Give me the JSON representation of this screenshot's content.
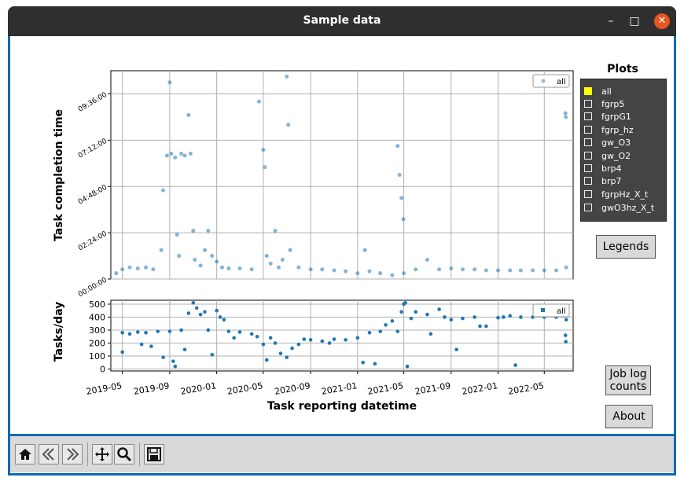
{
  "window": {
    "title": "Sample data",
    "controls": {
      "minimize": "–",
      "maximize": "□",
      "close": "✕"
    }
  },
  "plots_panel": {
    "title": "Plots",
    "items": [
      {
        "label": "all",
        "checked": true
      },
      {
        "label": "fgrp5",
        "checked": false
      },
      {
        "label": "fgrpG1",
        "checked": false
      },
      {
        "label": "fgrp_hz",
        "checked": false
      },
      {
        "label": "gw_O3",
        "checked": false
      },
      {
        "label": "gw_O2",
        "checked": false
      },
      {
        "label": "brp4",
        "checked": false
      },
      {
        "label": "brp7",
        "checked": false
      },
      {
        "label": "fgrpHz_X_t",
        "checked": false
      },
      {
        "label": "gwO3hz_X_t",
        "checked": false
      }
    ]
  },
  "buttons": {
    "legends": "Legends",
    "job_log_counts_line1": "Job log",
    "job_log_counts_line2": "counts",
    "about": "About"
  },
  "toolbar": {
    "icons": [
      "home-icon",
      "back-icon",
      "forward-icon",
      "pan-icon",
      "zoom-icon",
      "save-icon"
    ]
  },
  "colors": {
    "series": "#1f77b4",
    "accent": "#0a6ab3",
    "panel": "#444444",
    "titlebar": "#2f2f2f",
    "close": "#e95420"
  },
  "chart_data": [
    {
      "type": "scatter",
      "title": "",
      "xlabel": "",
      "ylabel": "Task completion time",
      "x_range": [
        "2019-04-01",
        "2022-07-15"
      ],
      "ylim_hours": [
        0,
        10.8
      ],
      "ytick_labels": [
        "00:00:00",
        "02:24:00",
        "04:48:00",
        "07:12:00",
        "09:36:00"
      ],
      "ytick_values_hours": [
        0,
        2.4,
        4.8,
        7.2,
        9.6
      ],
      "grid": true,
      "legend": {
        "placement": "top-right",
        "entries": [
          "all"
        ]
      },
      "series": [
        {
          "name": "all",
          "points": [
            [
              "2019-04-15",
              0.3
            ],
            [
              "2019-05-01",
              0.5
            ],
            [
              "2019-05-20",
              0.6
            ],
            [
              "2019-06-10",
              0.55
            ],
            [
              "2019-07-01",
              0.6
            ],
            [
              "2019-07-20",
              0.5
            ],
            [
              "2019-08-10",
              1.5
            ],
            [
              "2019-08-15",
              4.6
            ],
            [
              "2019-08-25",
              6.4
            ],
            [
              "2019-09-01",
              10.2
            ],
            [
              "2019-09-05",
              6.5
            ],
            [
              "2019-09-15",
              6.3
            ],
            [
              "2019-09-20",
              2.3
            ],
            [
              "2019-09-25",
              1.2
            ],
            [
              "2019-10-01",
              6.5
            ],
            [
              "2019-10-10",
              6.4
            ],
            [
              "2019-10-20",
              8.5
            ],
            [
              "2019-10-25",
              6.5
            ],
            [
              "2019-11-01",
              2.5
            ],
            [
              "2019-11-05",
              1.0
            ],
            [
              "2019-11-20",
              0.7
            ],
            [
              "2019-12-01",
              1.5
            ],
            [
              "2019-12-10",
              2.5
            ],
            [
              "2019-12-20",
              1.2
            ],
            [
              "2020-01-01",
              0.9
            ],
            [
              "2020-01-15",
              0.6
            ],
            [
              "2020-02-01",
              0.55
            ],
            [
              "2020-03-01",
              0.55
            ],
            [
              "2020-04-01",
              0.5
            ],
            [
              "2020-04-20",
              9.2
            ],
            [
              "2020-05-01",
              6.7
            ],
            [
              "2020-05-05",
              5.8
            ],
            [
              "2020-05-10",
              1.2
            ],
            [
              "2020-05-20",
              0.8
            ],
            [
              "2020-06-01",
              2.5
            ],
            [
              "2020-06-10",
              0.6
            ],
            [
              "2020-06-20",
              1.0
            ],
            [
              "2020-07-01",
              10.5
            ],
            [
              "2020-07-05",
              8.0
            ],
            [
              "2020-07-10",
              1.5
            ],
            [
              "2020-08-01",
              0.6
            ],
            [
              "2020-09-01",
              0.5
            ],
            [
              "2020-10-01",
              0.5
            ],
            [
              "2020-11-01",
              0.45
            ],
            [
              "2020-12-01",
              0.4
            ],
            [
              "2021-01-01",
              0.3
            ],
            [
              "2021-01-20",
              1.5
            ],
            [
              "2021-02-01",
              0.4
            ],
            [
              "2021-03-01",
              0.3
            ],
            [
              "2021-04-01",
              0.2
            ],
            [
              "2021-04-15",
              6.9
            ],
            [
              "2021-04-20",
              5.4
            ],
            [
              "2021-04-25",
              4.2
            ],
            [
              "2021-04-30",
              3.1
            ],
            [
              "2021-05-01",
              0.3
            ],
            [
              "2021-06-01",
              0.5
            ],
            [
              "2021-07-01",
              1.0
            ],
            [
              "2021-08-01",
              0.5
            ],
            [
              "2021-09-01",
              0.55
            ],
            [
              "2021-10-01",
              0.5
            ],
            [
              "2021-11-01",
              0.5
            ],
            [
              "2021-12-01",
              0.45
            ],
            [
              "2022-01-01",
              0.45
            ],
            [
              "2022-02-01",
              0.45
            ],
            [
              "2022-03-01",
              0.45
            ],
            [
              "2022-04-01",
              0.45
            ],
            [
              "2022-05-01",
              0.45
            ],
            [
              "2022-06-01",
              0.45
            ],
            [
              "2022-06-25",
              8.6
            ],
            [
              "2022-06-26",
              8.4
            ],
            [
              "2022-06-27",
              0.6
            ]
          ]
        }
      ]
    },
    {
      "type": "scatter",
      "title": "",
      "xlabel": "Task reporting datetime",
      "ylabel": "Tasks/day",
      "x_range": [
        "2019-04-01",
        "2022-07-15"
      ],
      "ylim": [
        -15,
        530
      ],
      "yticks": [
        0,
        100,
        200,
        300,
        400,
        500
      ],
      "xtick_labels": [
        "2019-05",
        "2019-09",
        "2020-01",
        "2020-05",
        "2020-09",
        "2021-01",
        "2021-05",
        "2021-09",
        "2022-01",
        "2022-05"
      ],
      "xtick_values": [
        "2019-05-01",
        "2019-09-01",
        "2020-01-01",
        "2020-05-01",
        "2020-09-01",
        "2021-01-01",
        "2021-05-01",
        "2021-09-01",
        "2022-01-01",
        "2022-05-01"
      ],
      "grid": true,
      "legend": {
        "placement": "top-right",
        "entries": [
          "all"
        ]
      },
      "series": [
        {
          "name": "all",
          "points": [
            [
              "2019-05-01",
              280
            ],
            [
              "2019-05-01",
              130
            ],
            [
              "2019-05-20",
              270
            ],
            [
              "2019-06-10",
              285
            ],
            [
              "2019-06-20",
              190
            ],
            [
              "2019-07-01",
              280
            ],
            [
              "2019-07-15",
              175
            ],
            [
              "2019-08-01",
              290
            ],
            [
              "2019-08-15",
              90
            ],
            [
              "2019-09-01",
              290
            ],
            [
              "2019-09-10",
              60
            ],
            [
              "2019-09-15",
              20
            ],
            [
              "2019-10-01",
              300
            ],
            [
              "2019-10-10",
              150
            ],
            [
              "2019-10-20",
              430
            ],
            [
              "2019-11-01",
              510
            ],
            [
              "2019-11-10",
              470
            ],
            [
              "2019-11-20",
              420
            ],
            [
              "2019-12-01",
              440
            ],
            [
              "2019-12-10",
              300
            ],
            [
              "2019-12-20",
              110
            ],
            [
              "2020-01-01",
              450
            ],
            [
              "2020-01-10",
              400
            ],
            [
              "2020-01-20",
              380
            ],
            [
              "2020-02-01",
              290
            ],
            [
              "2020-02-15",
              240
            ],
            [
              "2020-03-01",
              285
            ],
            [
              "2020-04-01",
              270
            ],
            [
              "2020-04-15",
              250
            ],
            [
              "2020-05-01",
              190
            ],
            [
              "2020-05-10",
              70
            ],
            [
              "2020-05-20",
              240
            ],
            [
              "2020-06-01",
              200
            ],
            [
              "2020-06-15",
              120
            ],
            [
              "2020-07-01",
              90
            ],
            [
              "2020-07-15",
              160
            ],
            [
              "2020-08-01",
              190
            ],
            [
              "2020-08-15",
              230
            ],
            [
              "2020-09-01",
              225
            ],
            [
              "2020-10-01",
              215
            ],
            [
              "2020-10-20",
              200
            ],
            [
              "2020-11-01",
              230
            ],
            [
              "2020-12-01",
              225
            ],
            [
              "2021-01-01",
              240
            ],
            [
              "2021-01-15",
              50
            ],
            [
              "2021-02-01",
              280
            ],
            [
              "2021-02-15",
              40
            ],
            [
              "2021-03-01",
              290
            ],
            [
              "2021-03-15",
              340
            ],
            [
              "2021-04-01",
              370
            ],
            [
              "2021-04-15",
              290
            ],
            [
              "2021-04-25",
              440
            ],
            [
              "2021-05-01",
              500
            ],
            [
              "2021-05-05",
              510
            ],
            [
              "2021-05-10",
              20
            ],
            [
              "2021-05-20",
              390
            ],
            [
              "2021-06-01",
              440
            ],
            [
              "2021-07-01",
              420
            ],
            [
              "2021-07-10",
              270
            ],
            [
              "2021-08-01",
              460
            ],
            [
              "2021-08-15",
              400
            ],
            [
              "2021-09-01",
              380
            ],
            [
              "2021-09-15",
              150
            ],
            [
              "2021-10-01",
              390
            ],
            [
              "2021-11-01",
              400
            ],
            [
              "2021-11-15",
              330
            ],
            [
              "2021-12-01",
              330
            ],
            [
              "2022-01-01",
              395
            ],
            [
              "2022-01-15",
              400
            ],
            [
              "2022-02-01",
              410
            ],
            [
              "2022-02-15",
              30
            ],
            [
              "2022-03-01",
              400
            ],
            [
              "2022-04-01",
              400
            ],
            [
              "2022-05-01",
              400
            ],
            [
              "2022-06-01",
              400
            ],
            [
              "2022-06-20",
              410
            ],
            [
              "2022-06-25",
              260
            ],
            [
              "2022-06-26",
              210
            ],
            [
              "2022-06-27",
              380
            ]
          ]
        }
      ]
    }
  ]
}
